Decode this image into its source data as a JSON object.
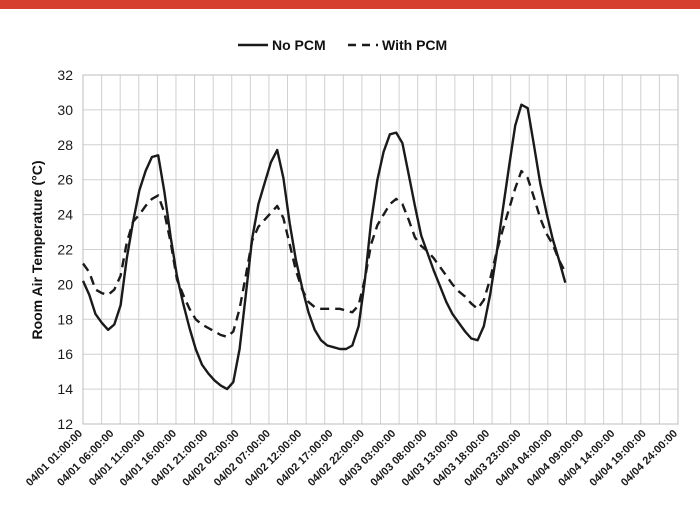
{
  "chart_data": {
    "type": "line",
    "title": "",
    "ylabel": "Room Air Temperature (°C)",
    "xlabel": "",
    "ylim": [
      12,
      32
    ],
    "yticks": [
      12,
      14,
      16,
      18,
      20,
      22,
      24,
      26,
      28,
      30,
      32
    ],
    "grid": true,
    "legend_position": "top-center",
    "x_start_hour": 1,
    "x_end_hour": 96,
    "xtick_labels": [
      "04/01 01:00:00",
      "04/01 06:00:00",
      "04/01 11:00:00",
      "04/01 16:00:00",
      "04/01 21:00:00",
      "04/02 02:00:00",
      "04/02 07:00:00",
      "04/02 12:00:00",
      "04/02 17:00:00",
      "04/02 22:00:00",
      "04/03 03:00:00",
      "04/03 08:00:00",
      "04/03 13:00:00",
      "04/03 18:00:00",
      "04/03 23:00:00",
      "04/04 04:00:00",
      "04/04 09:00:00",
      "04/04 14:00:00",
      "04/04 19:00:00",
      "04/04 24:00:00"
    ],
    "series": [
      {
        "name": "No PCM",
        "style": "solid",
        "color": "#1a1a1a",
        "points": [
          [
            1,
            20.2
          ],
          [
            2,
            19.4
          ],
          [
            3,
            18.3
          ],
          [
            4,
            17.8
          ],
          [
            5,
            17.4
          ],
          [
            6,
            17.7
          ],
          [
            7,
            18.8
          ],
          [
            8,
            21.5
          ],
          [
            9,
            23.6
          ],
          [
            10,
            25.4
          ],
          [
            11,
            26.5
          ],
          [
            12,
            27.3
          ],
          [
            13,
            27.4
          ],
          [
            14,
            25.3
          ],
          [
            15,
            22.7
          ],
          [
            16,
            20.5
          ],
          [
            17,
            18.9
          ],
          [
            18,
            17.5
          ],
          [
            19,
            16.3
          ],
          [
            20,
            15.4
          ],
          [
            21,
            14.9
          ],
          [
            22,
            14.5
          ],
          [
            23,
            14.2
          ],
          [
            24,
            14.0
          ],
          [
            25,
            14.4
          ],
          [
            26,
            16.3
          ],
          [
            27,
            19.4
          ],
          [
            28,
            22.6
          ],
          [
            29,
            24.6
          ],
          [
            30,
            25.8
          ],
          [
            31,
            27.0
          ],
          [
            32,
            27.7
          ],
          [
            33,
            26.1
          ],
          [
            34,
            23.5
          ],
          [
            35,
            21.4
          ],
          [
            36,
            19.8
          ],
          [
            37,
            18.4
          ],
          [
            38,
            17.4
          ],
          [
            39,
            16.8
          ],
          [
            40,
            16.5
          ],
          [
            41,
            16.4
          ],
          [
            42,
            16.3
          ],
          [
            43,
            16.3
          ],
          [
            44,
            16.5
          ],
          [
            45,
            17.6
          ],
          [
            46,
            20.2
          ],
          [
            47,
            23.6
          ],
          [
            48,
            26.0
          ],
          [
            49,
            27.6
          ],
          [
            50,
            28.6
          ],
          [
            51,
            28.7
          ],
          [
            52,
            28.1
          ],
          [
            53,
            26.3
          ],
          [
            54,
            24.5
          ],
          [
            55,
            22.8
          ],
          [
            56,
            21.8
          ],
          [
            57,
            20.8
          ],
          [
            58,
            19.9
          ],
          [
            59,
            19.0
          ],
          [
            60,
            18.3
          ],
          [
            61,
            17.8
          ],
          [
            62,
            17.3
          ],
          [
            63,
            16.9
          ],
          [
            64,
            16.8
          ],
          [
            65,
            17.6
          ],
          [
            66,
            19.4
          ],
          [
            67,
            21.7
          ],
          [
            68,
            24.2
          ],
          [
            69,
            26.7
          ],
          [
            70,
            29.1
          ],
          [
            71,
            30.3
          ],
          [
            72,
            30.1
          ],
          [
            73,
            28.0
          ],
          [
            74,
            25.8
          ],
          [
            75,
            24.1
          ],
          [
            76,
            22.6
          ],
          [
            77,
            21.4
          ],
          [
            78,
            20.1
          ]
        ]
      },
      {
        "name": "With PCM",
        "style": "dashed",
        "color": "#1a1a1a",
        "points": [
          [
            1,
            21.2
          ],
          [
            2,
            20.7
          ],
          [
            3,
            19.7
          ],
          [
            4,
            19.5
          ],
          [
            5,
            19.4
          ],
          [
            6,
            19.7
          ],
          [
            7,
            20.5
          ],
          [
            8,
            22.4
          ],
          [
            9,
            23.6
          ],
          [
            10,
            24.0
          ],
          [
            11,
            24.5
          ],
          [
            12,
            24.9
          ],
          [
            13,
            25.1
          ],
          [
            14,
            24.1
          ],
          [
            15,
            22.4
          ],
          [
            16,
            20.3
          ],
          [
            17,
            19.4
          ],
          [
            18,
            18.6
          ],
          [
            19,
            18.0
          ],
          [
            20,
            17.7
          ],
          [
            21,
            17.5
          ],
          [
            22,
            17.3
          ],
          [
            23,
            17.1
          ],
          [
            24,
            17.0
          ],
          [
            25,
            17.3
          ],
          [
            26,
            18.6
          ],
          [
            27,
            20.5
          ],
          [
            28,
            22.5
          ],
          [
            29,
            23.3
          ],
          [
            30,
            23.7
          ],
          [
            31,
            24.1
          ],
          [
            32,
            24.5
          ],
          [
            33,
            23.8
          ],
          [
            34,
            22.3
          ],
          [
            35,
            20.8
          ],
          [
            36,
            19.7
          ],
          [
            37,
            19.0
          ],
          [
            38,
            18.7
          ],
          [
            39,
            18.6
          ],
          [
            40,
            18.6
          ],
          [
            41,
            18.6
          ],
          [
            42,
            18.6
          ],
          [
            43,
            18.5
          ],
          [
            44,
            18.4
          ],
          [
            45,
            18.8
          ],
          [
            46,
            20.3
          ],
          [
            47,
            22.3
          ],
          [
            48,
            23.4
          ],
          [
            49,
            24.0
          ],
          [
            50,
            24.6
          ],
          [
            51,
            24.9
          ],
          [
            52,
            24.6
          ],
          [
            53,
            23.7
          ],
          [
            54,
            22.7
          ],
          [
            55,
            22.2
          ],
          [
            56,
            21.9
          ],
          [
            57,
            21.5
          ],
          [
            58,
            21.0
          ],
          [
            59,
            20.5
          ],
          [
            60,
            20.0
          ],
          [
            61,
            19.6
          ],
          [
            62,
            19.3
          ],
          [
            63,
            18.9
          ],
          [
            64,
            18.6
          ],
          [
            65,
            19.1
          ],
          [
            66,
            20.3
          ],
          [
            67,
            21.8
          ],
          [
            68,
            23.1
          ],
          [
            69,
            24.3
          ],
          [
            70,
            25.5
          ],
          [
            71,
            26.5
          ],
          [
            72,
            26.1
          ],
          [
            73,
            25.0
          ],
          [
            74,
            23.8
          ],
          [
            75,
            22.9
          ],
          [
            76,
            22.3
          ],
          [
            77,
            21.4
          ],
          [
            78,
            20.7
          ]
        ]
      }
    ]
  }
}
